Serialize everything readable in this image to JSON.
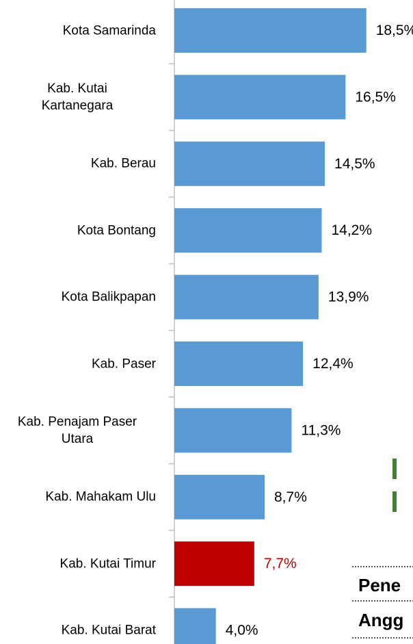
{
  "chart_data": {
    "type": "barh",
    "categories": [
      "Kota Samarinda",
      "Kab. Kutai\nKartanegara",
      "Kab. Berau",
      "Kota Bontang",
      "Kota Balikpapan",
      "Kab. Paser",
      "Kab. Penajam Paser\nUtara",
      "Kab. Mahakam Ulu",
      "Kab. Kutai Timur",
      "Kab. Kutai Barat"
    ],
    "values": [
      18.5,
      16.5,
      14.5,
      14.2,
      13.9,
      12.4,
      11.3,
      8.7,
      7.7,
      4.0
    ],
    "value_labels": [
      "18,5%",
      "16,5%",
      "14,5%",
      "14,2%",
      "13,9%",
      "12,4%",
      "11,3%",
      "8,7%",
      "7,7%",
      "4,0%"
    ],
    "colors": [
      "#5b9bd5",
      "#5b9bd5",
      "#5b9bd5",
      "#5b9bd5",
      "#5b9bd5",
      "#5b9bd5",
      "#5b9bd5",
      "#5b9bd5",
      "#c00000",
      "#5b9bd5"
    ],
    "label_colors": [
      "#000000",
      "#000000",
      "#000000",
      "#000000",
      "#000000",
      "#000000",
      "#000000",
      "#000000",
      "#c00000",
      "#000000"
    ],
    "xlim": [
      0,
      23
    ],
    "annotations": [
      "Pene",
      "Angg"
    ]
  }
}
